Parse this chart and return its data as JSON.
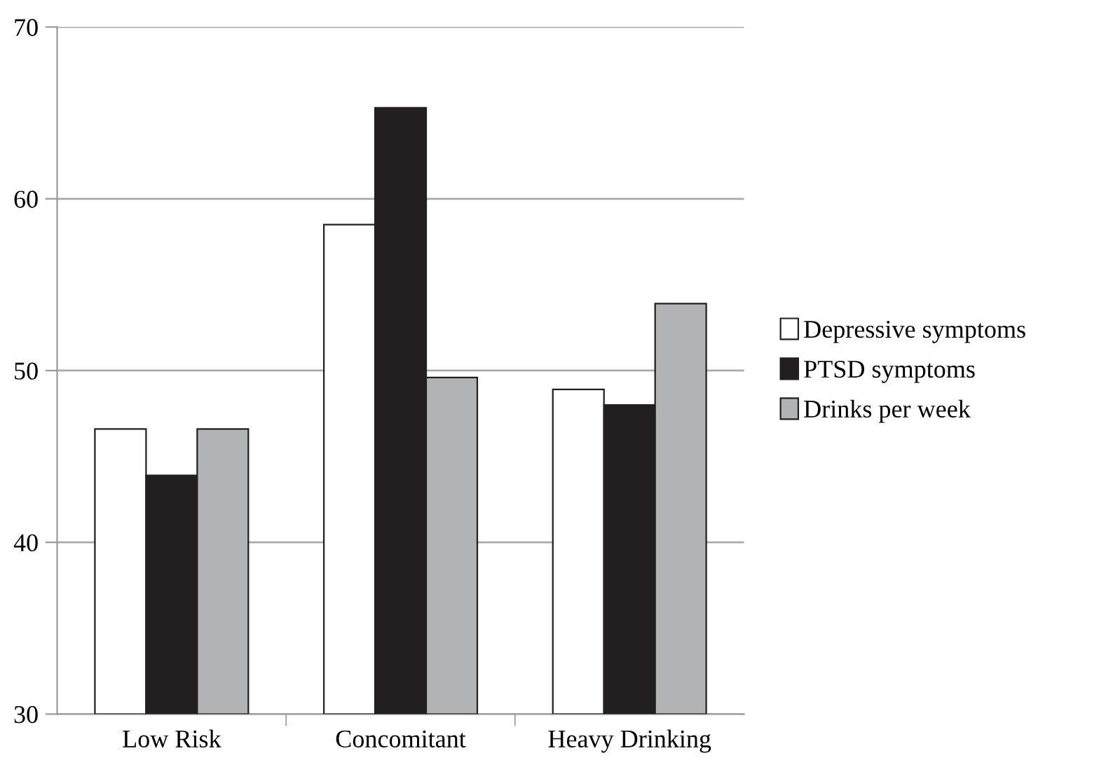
{
  "chart_data": {
    "type": "bar",
    "categories": [
      "Low Risk",
      "Concomitant",
      "Heavy Drinking"
    ],
    "series": [
      {
        "name": "Depressive symptoms",
        "color": "#ffffff",
        "values": [
          46.6,
          58.5,
          48.9
        ]
      },
      {
        "name": "PTSD symptoms",
        "color": "#231f20",
        "values": [
          43.9,
          65.3,
          48.0
        ]
      },
      {
        "name": "Drinks per week",
        "color": "#b2b3b5",
        "values": [
          46.6,
          49.6,
          53.9
        ]
      }
    ],
    "ylim": [
      30,
      70
    ],
    "yticks": [
      30,
      40,
      50,
      60,
      70
    ],
    "grid": "y",
    "legend": "right"
  }
}
